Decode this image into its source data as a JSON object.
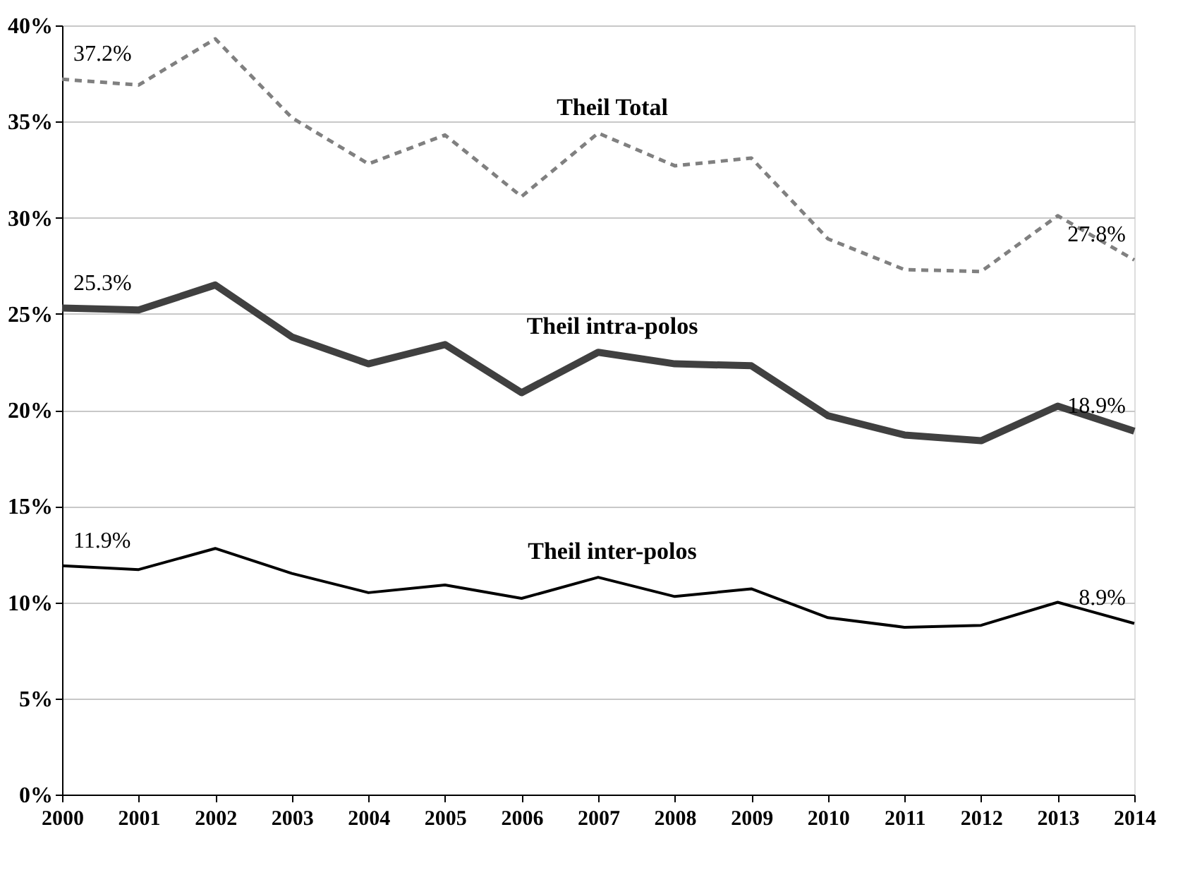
{
  "chart_data": {
    "type": "line",
    "categories": [
      "2000",
      "2001",
      "2002",
      "2003",
      "2004",
      "2005",
      "2006",
      "2007",
      "2008",
      "2009",
      "2010",
      "2011",
      "2012",
      "2013",
      "2014"
    ],
    "series": [
      {
        "name": "Theil Total",
        "color": "#808080",
        "line_style": "dashed",
        "values": [
          37.2,
          36.9,
          39.3,
          35.2,
          32.8,
          34.3,
          31.1,
          34.4,
          32.7,
          33.1,
          28.9,
          27.3,
          27.2,
          30.1,
          27.8
        ]
      },
      {
        "name": "Theil intra-polos",
        "color": "#404040",
        "line_style": "solid",
        "values": [
          25.3,
          25.2,
          26.5,
          23.8,
          22.4,
          23.4,
          20.9,
          23.0,
          22.4,
          22.3,
          19.7,
          18.7,
          18.4,
          20.2,
          18.9
        ]
      },
      {
        "name": "Theil inter-polos",
        "color": "#000000",
        "line_style": "solid",
        "values": [
          11.9,
          11.7,
          12.8,
          11.5,
          10.5,
          10.9,
          10.2,
          11.3,
          10.3,
          10.7,
          9.2,
          8.7,
          8.8,
          10.0,
          8.9
        ]
      }
    ],
    "ylim": [
      0,
      40
    ],
    "yticks": [
      {
        "value": 0,
        "label": "0%"
      },
      {
        "value": 5,
        "label": "5%"
      },
      {
        "value": 10,
        "label": "10%"
      },
      {
        "value": 15,
        "label": "15%"
      },
      {
        "value": 20,
        "label": "20%"
      },
      {
        "value": 25,
        "label": "25%"
      },
      {
        "value": 30,
        "label": "30%"
      },
      {
        "value": 35,
        "label": "35%"
      },
      {
        "value": 40,
        "label": "40%"
      }
    ],
    "grid": "y",
    "marker": "none",
    "annotations": [
      {
        "text": "37.2%",
        "x": "2000",
        "y": 37.2
      },
      {
        "text": "27.8%",
        "x": "2014",
        "y": 27.8
      },
      {
        "text": "25.3%",
        "x": "2000",
        "y": 25.3
      },
      {
        "text": "18.9%",
        "x": "2014",
        "y": 18.9
      },
      {
        "text": "11.9%",
        "x": "2000",
        "y": 11.9
      },
      {
        "text": "8.9%",
        "x": "2014",
        "y": 8.9
      }
    ]
  }
}
